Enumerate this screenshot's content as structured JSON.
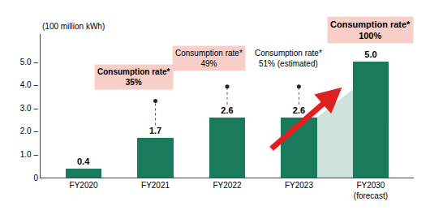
{
  "chart_data": {
    "type": "bar",
    "categories": [
      "FY2020",
      "FY2021",
      "FY2022",
      "FY2023",
      "FY2030\n(forecast)"
    ],
    "values": [
      0.4,
      1.7,
      2.6,
      2.6,
      5.0
    ],
    "value_labels": [
      "0.4",
      "1.7",
      "2.6",
      "2.6",
      "5.0"
    ],
    "data_labels": true,
    "color": "#1a7a5e",
    "ylabel": "(100 million kWh)",
    "ylim": [
      0,
      6.2
    ],
    "yticks": [
      0,
      {
        "value": 1.0,
        "label": "1.0 –"
      },
      {
        "value": 2.0,
        "label": "2.0 –"
      },
      {
        "value": 3.0,
        "label": "3.0 –"
      },
      {
        "value": 4.0,
        "label": "4.0 –"
      },
      {
        "value": 5.0,
        "label": "5.0 –"
      }
    ],
    "grid": false,
    "annotations": [
      {
        "text": "Consumption rate*\n35%",
        "color": "#f7cfc8"
      },
      {
        "text": "Consumption rate*\n49%",
        "color": "#f7cfc8"
      },
      {
        "text": "Consumption rate*\n51% (estimated)"
      },
      {
        "text": "Consumption rate*\n100%",
        "color": "#f7cfc8"
      }
    ]
  }
}
